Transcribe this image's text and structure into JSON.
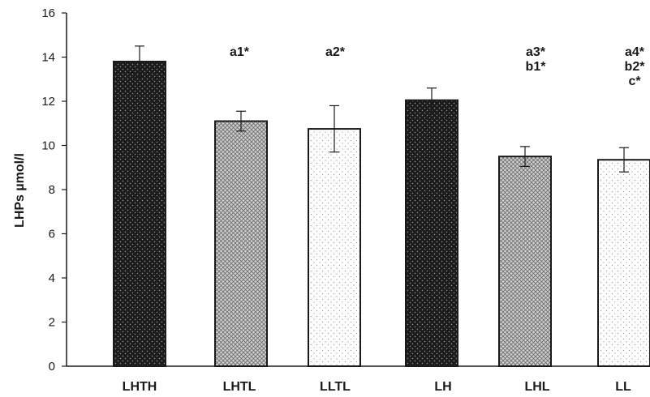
{
  "chart_data": {
    "type": "bar",
    "title": "",
    "xlabel": "",
    "ylabel": "LHPs µmol/l",
    "ylim": [
      0,
      16
    ],
    "yticks": [
      0,
      2,
      4,
      6,
      8,
      10,
      12,
      14,
      16
    ],
    "grid": false,
    "categories": [
      "LHTH",
      "LHTL",
      "LLTL",
      "LH",
      "LHL",
      "LL"
    ],
    "values": [
      13.8,
      11.1,
      10.75,
      12.05,
      9.5,
      9.35
    ],
    "errors": [
      0.7,
      0.45,
      1.05,
      0.55,
      0.45,
      0.55
    ],
    "fills": [
      "dark-dotted",
      "crosshatch",
      "light-dotted",
      "dark-dotted",
      "crosshatch",
      "light-dotted"
    ],
    "annotations": [
      [],
      [
        "a1*"
      ],
      [
        "a2*"
      ],
      [],
      [
        "a3*",
        "b1*"
      ],
      [
        "a4*",
        "b2*",
        "c*"
      ]
    ]
  },
  "colors": {
    "dark_fill": "#1c1c1c",
    "dot_light": "#9a9a9a",
    "crosshatch_bg": "#cfcfcf",
    "crosshatch_line": "#6a6a6a",
    "light_bg": "#ffffff",
    "light_dot": "#8a8a8a",
    "axis": "#1a1a1a"
  }
}
